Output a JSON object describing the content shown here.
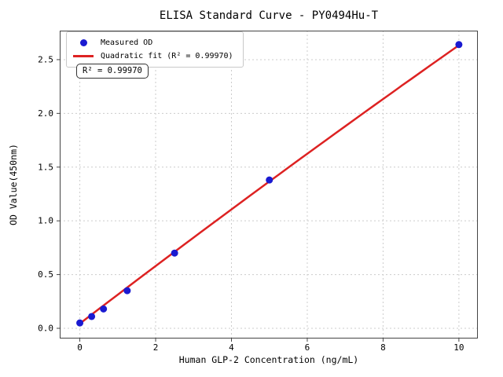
{
  "title": "ELISA Standard Curve - PY0494Hu-T",
  "legend": {
    "measured_label": "Measured OD",
    "fit_label": "Quadratic fit (R² = 0.99970)"
  },
  "annotation": {
    "r_squared_text": "R² = 0.99970"
  },
  "colors": {
    "marker": "#1a1ad1",
    "fit_line": "#dd2222",
    "grid": "#cccccc",
    "spine": "#444444",
    "text": "#000000"
  },
  "chart_data": {
    "type": "scatter",
    "title": "ELISA Standard Curve - PY0494Hu-T",
    "xlabel": "Human GLP-2 Concentration (ng/mL)",
    "ylabel": "OD Value(450nm)",
    "series": [
      {
        "name": "Measured OD",
        "marker": "circle",
        "x": [
          0,
          0.312,
          0.625,
          1.25,
          2.5,
          5,
          10
        ],
        "y": [
          0.05,
          0.11,
          0.18,
          0.35,
          0.7,
          1.38,
          2.64
        ]
      },
      {
        "name": "Quadratic fit (R² = 0.99970)",
        "type": "line",
        "fit": "quadratic",
        "coefficients": {
          "a": 0.044,
          "b": 0.27,
          "c": -0.0011
        },
        "r_squared": 0.9997,
        "x_range": [
          0,
          10
        ]
      }
    ],
    "xlim": [
      -0.53,
      10.5
    ],
    "ylim": [
      -0.095,
      2.77
    ],
    "xticks": [
      0,
      2,
      4,
      6,
      8,
      10
    ],
    "yticks": [
      0.0,
      0.5,
      1.0,
      1.5,
      2.0,
      2.5
    ],
    "grid": true,
    "grid_style": "dashed",
    "legend_position": "upper left"
  }
}
